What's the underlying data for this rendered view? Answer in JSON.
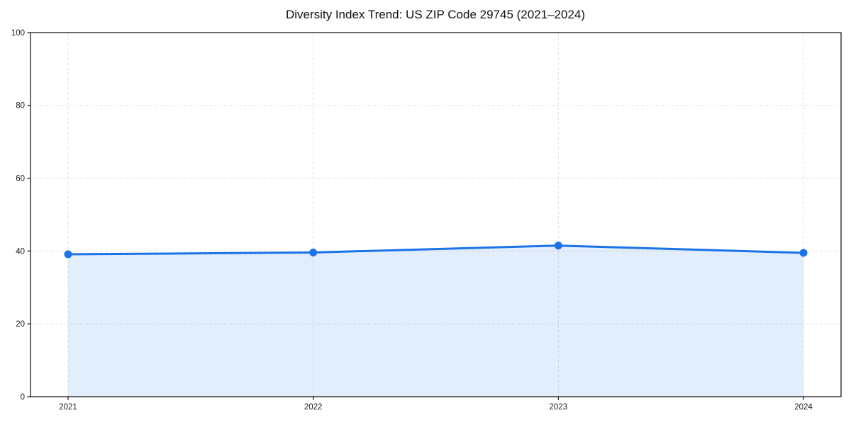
{
  "chart_data": {
    "type": "area",
    "title": "Diversity Index Trend: US ZIP Code 29745 (2021–2024)",
    "x": [
      2021,
      2022,
      2023,
      2024
    ],
    "xtick_labels": [
      "2021",
      "2022",
      "2023",
      "2024"
    ],
    "series": [
      {
        "name": "Diversity Index",
        "values": [
          39.1,
          39.6,
          41.5,
          39.5
        ]
      }
    ],
    "xlabel": "",
    "ylabel": "",
    "ylim": [
      0,
      100
    ],
    "yticks": [
      0,
      20,
      40,
      60,
      80,
      100
    ],
    "grid": true,
    "grid_style": "dashed",
    "legend_position": "none",
    "colors": {
      "line": "#1a73e8",
      "marker": "#1a73e8",
      "fill": "#1a73e8",
      "fill_opacity": "0.12",
      "grid": "#e1e1e1",
      "spine": "#1a1a1a",
      "text": "#1a1a1a",
      "background": "#ffffff"
    }
  }
}
